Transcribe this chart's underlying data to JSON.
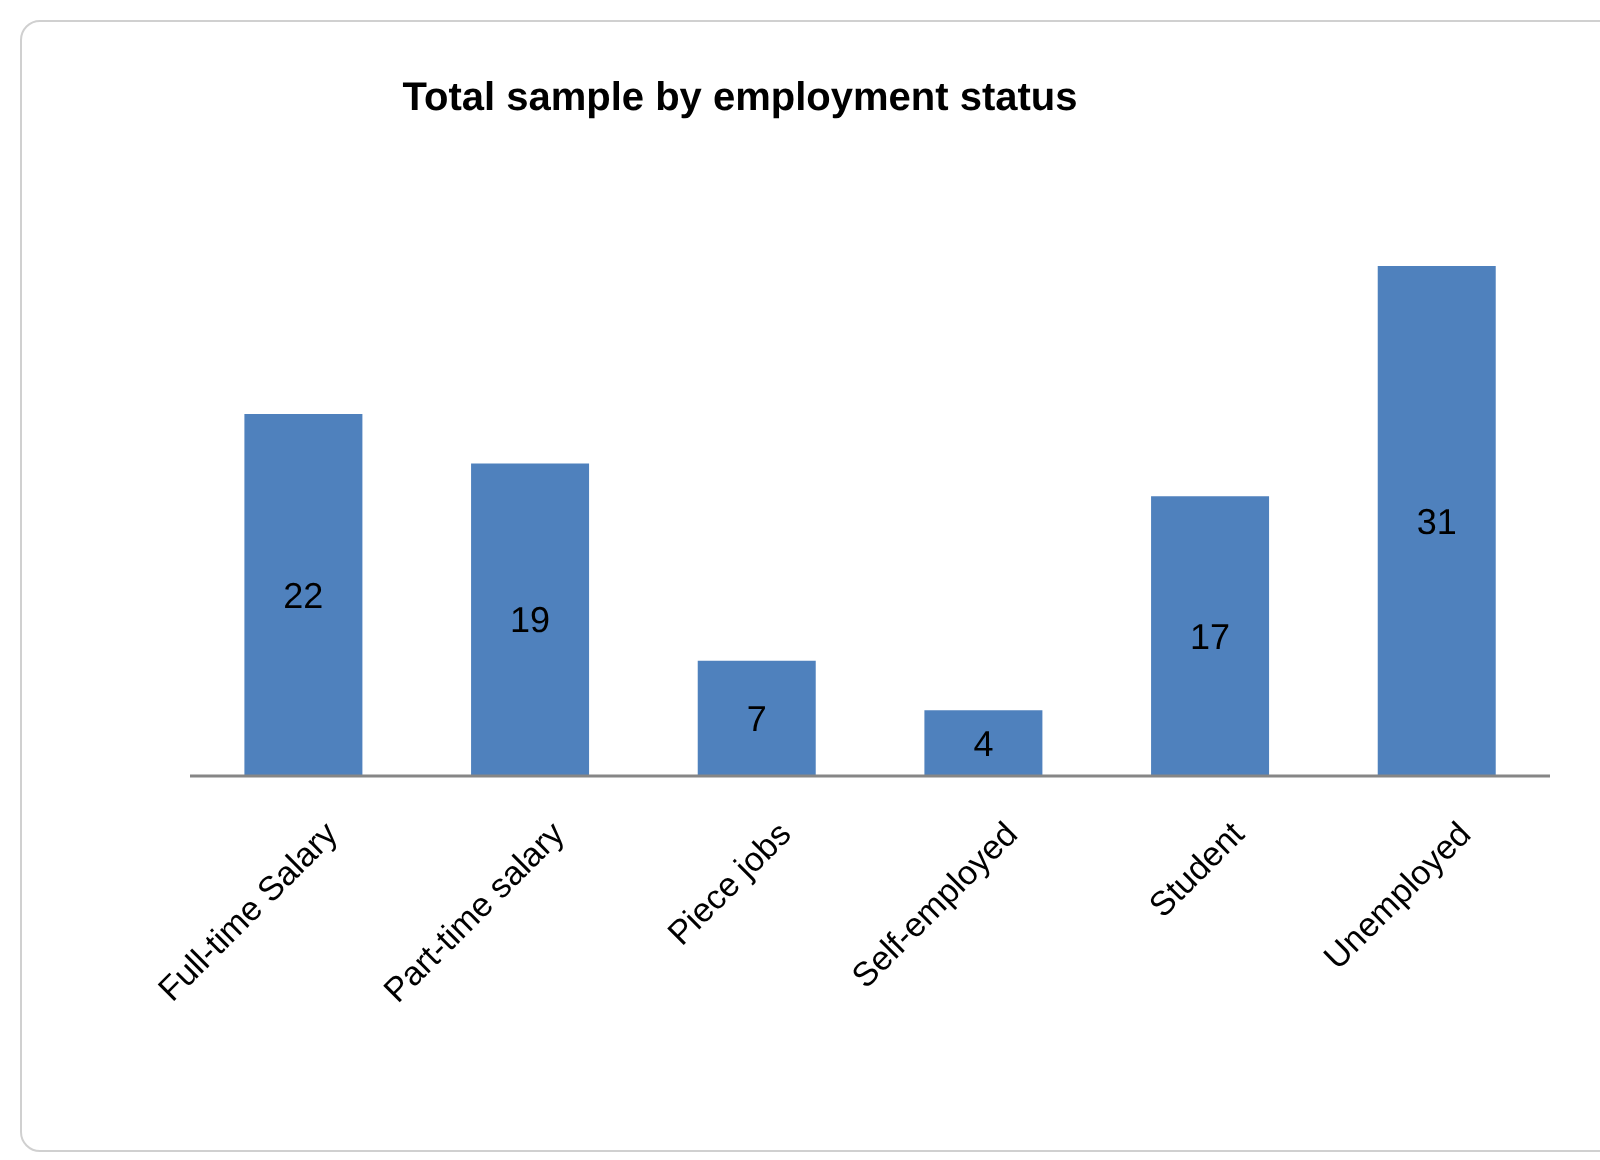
{
  "chart_data": {
    "type": "bar",
    "title": "Total sample by employment status",
    "categories": [
      "Full-time Salary",
      "Part-time salary",
      "Piece jobs",
      "Self-employed",
      "Student",
      "Unemployed"
    ],
    "values": [
      22,
      19,
      7,
      4,
      17,
      31
    ],
    "color": "#4f81bd",
    "data_labels": true,
    "tick_labels": "x",
    "ylim": [
      0,
      31
    ],
    "grid": false,
    "legend": false
  }
}
